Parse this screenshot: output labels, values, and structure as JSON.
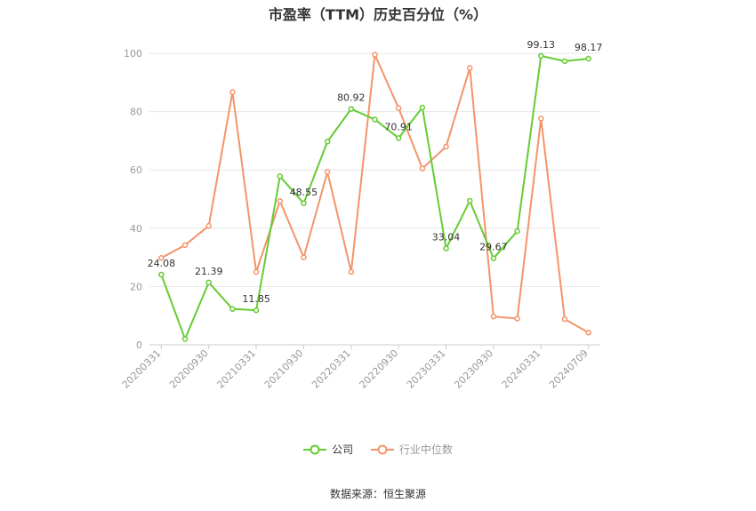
{
  "chart_data": {
    "type": "line",
    "title": "市盈率（TTM）历史百分位（%）",
    "ylim": [
      0,
      100
    ],
    "yticks": [
      0,
      20,
      40,
      60,
      80,
      100
    ],
    "x_tick_labels": [
      "20200331",
      "20200930",
      "20210331",
      "20210930",
      "20220331",
      "20220930",
      "20230331",
      "20230930",
      "20240331",
      "20240709"
    ],
    "series": [
      {
        "name": "公司",
        "color": "#66cc33",
        "values": [
          24.08,
          2.0,
          21.39,
          12.3,
          11.85,
          57.8,
          48.55,
          69.7,
          80.92,
          77.3,
          70.91,
          81.4,
          33.04,
          49.4,
          29.67,
          39.0,
          99.13,
          97.3,
          98.17
        ]
      },
      {
        "name": "行业中位数",
        "color": "#f4946a",
        "values": [
          29.8,
          34.2,
          40.8,
          86.7,
          25.0,
          49.3,
          30.0,
          59.3,
          25.0,
          99.5,
          81.2,
          60.5,
          68.0,
          95.0,
          9.7,
          9.0,
          77.6,
          8.8,
          4.2
        ]
      }
    ],
    "data_labels": [
      {
        "series": 0,
        "index": 0,
        "text": "24.08"
      },
      {
        "series": 0,
        "index": 2,
        "text": "21.39"
      },
      {
        "series": 0,
        "index": 4,
        "text": "11.85"
      },
      {
        "series": 0,
        "index": 6,
        "text": "48.55"
      },
      {
        "series": 0,
        "index": 8,
        "text": "80.92"
      },
      {
        "series": 0,
        "index": 10,
        "text": "70.91"
      },
      {
        "series": 0,
        "index": 12,
        "text": "33.04"
      },
      {
        "series": 0,
        "index": 14,
        "text": "29.67"
      },
      {
        "series": 0,
        "index": 16,
        "text": "99.13"
      },
      {
        "series": 0,
        "index": 18,
        "text": "98.17"
      }
    ],
    "legend_position": "bottom",
    "grid": true
  },
  "source": "数据来源：恒生聚源"
}
